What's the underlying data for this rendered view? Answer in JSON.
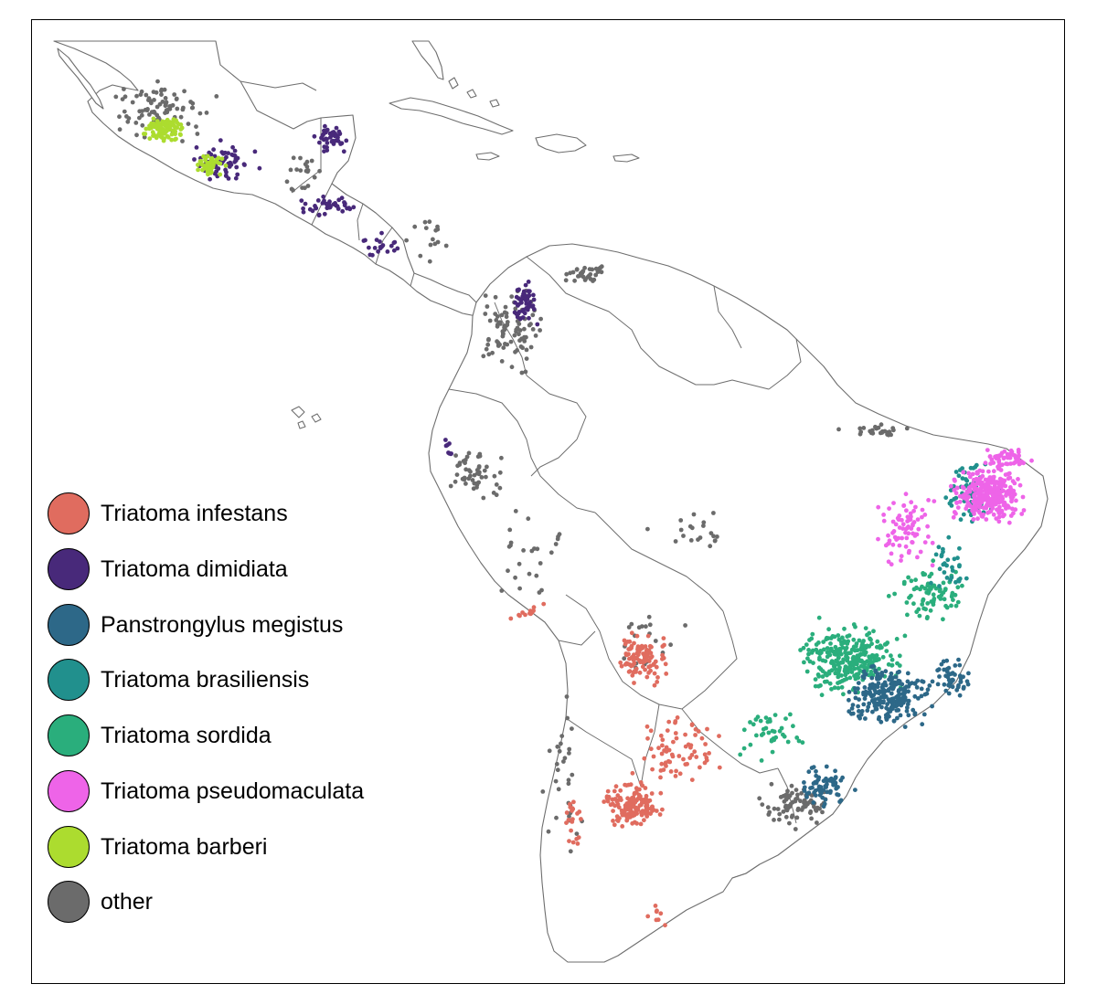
{
  "map": {
    "background": "#ffffff",
    "border_color": "#6e6e6e"
  },
  "legend": {
    "items": [
      {
        "label": "Triatoma infestans",
        "color": "#e06c5f"
      },
      {
        "label": "Triatoma dimidiata",
        "color": "#48297a"
      },
      {
        "label": "Panstrongylus megistus",
        "color": "#2d6888"
      },
      {
        "label": "Triatoma brasiliensis",
        "color": "#21908d"
      },
      {
        "label": "Triatoma sordida",
        "color": "#2aae7c"
      },
      {
        "label": "Triatoma pseudomaculata",
        "color": "#ee64e8"
      },
      {
        "label": "Triatoma barberi",
        "color": "#acdc2f"
      },
      {
        "label": "other",
        "color": "#6b6b6b"
      }
    ]
  }
}
